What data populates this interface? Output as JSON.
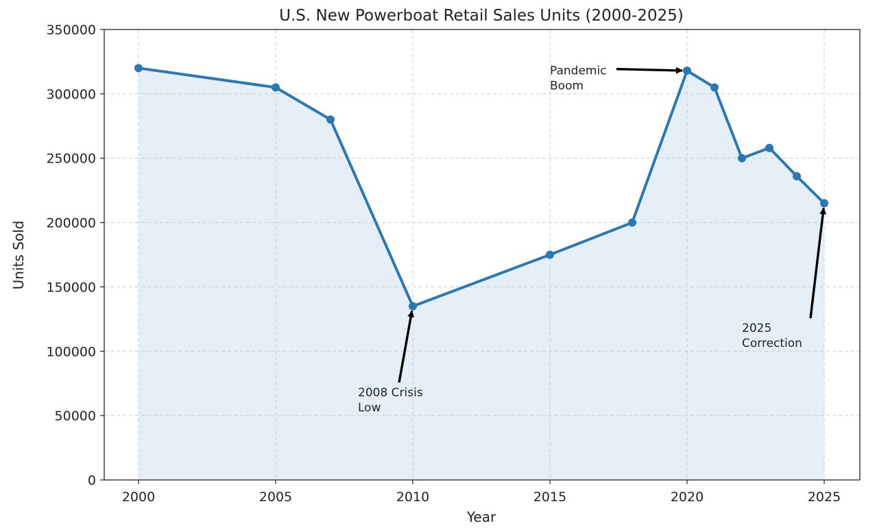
{
  "chart_data": {
    "type": "line",
    "title": "U.S. New Powerboat Retail Sales Units (2000-2025)",
    "xlabel": "Year",
    "ylabel": "Units Sold",
    "x": [
      2000,
      2005,
      2007,
      2010,
      2015,
      2018,
      2020,
      2021,
      2022,
      2023,
      2024,
      2025
    ],
    "series": [
      {
        "values": [
          320000,
          305000,
          280000,
          135000,
          175000,
          200000,
          318000,
          305000,
          250000,
          258000,
          236000,
          215000
        ]
      }
    ],
    "xlim": [
      1998.75,
      2026.3
    ],
    "ylim": [
      0,
      350000
    ],
    "x_ticks": [
      2000,
      2005,
      2010,
      2015,
      2020,
      2025
    ],
    "y_ticks": [
      0,
      50000,
      100000,
      150000,
      200000,
      250000,
      300000,
      350000
    ],
    "grid": true,
    "grid_style": "dashed",
    "fill_under_line": true,
    "legend": "none",
    "colors": {
      "line": "#2878b5",
      "fill": "#e6eff8",
      "grid": "#cccccc",
      "annotation_arrow": "#000000"
    },
    "annotations": [
      {
        "lines": [
          "2008 Crisis",
          "Low"
        ],
        "target": {
          "x": 2010,
          "y": 135000
        },
        "text_anchor": {
          "x": 2008,
          "y": 65000
        }
      },
      {
        "lines": [
          "Pandemic",
          "Boom"
        ],
        "target": {
          "x": 2020,
          "y": 318000
        },
        "text_anchor": {
          "x": 2015,
          "y": 315000
        }
      },
      {
        "lines": [
          "2025",
          "Correction"
        ],
        "target": {
          "x": 2025,
          "y": 215000
        },
        "text_anchor": {
          "x": 2022,
          "y": 115000
        }
      }
    ]
  }
}
